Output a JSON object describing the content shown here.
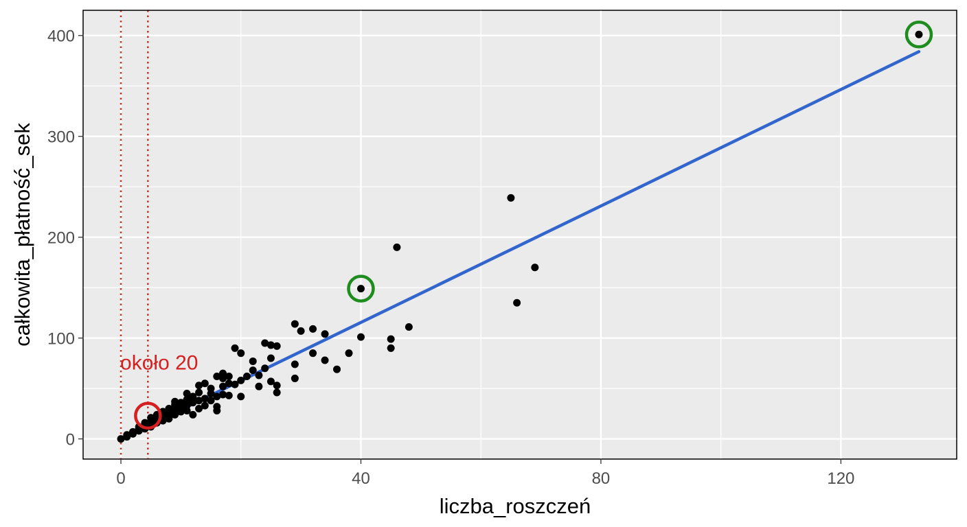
{
  "chart_data": {
    "type": "scatter",
    "xlabel": "liczba_roszczeń",
    "ylabel": "całkowita_płatność_sek",
    "xlim": [
      -6.3,
      139.3
    ],
    "ylim": [
      -20,
      425
    ],
    "x_ticks": [
      0,
      40,
      80,
      120
    ],
    "y_ticks": [
      0,
      100,
      200,
      300,
      400
    ],
    "x_tick_labels": [
      "0",
      "40",
      "80",
      "120"
    ],
    "y_tick_labels": [
      "0",
      "100",
      "200",
      "300",
      "400"
    ],
    "grid": true,
    "legend": "none",
    "colors": {
      "panel": "#ebebeb",
      "grid": "#ffffff",
      "point": "#000000",
      "fit_line": "#3366cc",
      "highlight_green": "#1e8c1e",
      "highlight_red": "#d42020",
      "vline": "#c0392b"
    },
    "points": [
      {
        "x": 0,
        "y": 0
      },
      {
        "x": 1,
        "y": 2
      },
      {
        "x": 1,
        "y": 4
      },
      {
        "x": 2,
        "y": 5
      },
      {
        "x": 2,
        "y": 7
      },
      {
        "x": 3,
        "y": 8
      },
      {
        "x": 3,
        "y": 10
      },
      {
        "x": 3,
        "y": 12
      },
      {
        "x": 4,
        "y": 10
      },
      {
        "x": 4,
        "y": 14
      },
      {
        "x": 4,
        "y": 16
      },
      {
        "x": 5,
        "y": 12
      },
      {
        "x": 5,
        "y": 15
      },
      {
        "x": 5,
        "y": 18
      },
      {
        "x": 5,
        "y": 21
      },
      {
        "x": 6,
        "y": 16
      },
      {
        "x": 6,
        "y": 20
      },
      {
        "x": 6,
        "y": 24
      },
      {
        "x": 7,
        "y": 18
      },
      {
        "x": 7,
        "y": 22
      },
      {
        "x": 7,
        "y": 27
      },
      {
        "x": 8,
        "y": 20
      },
      {
        "x": 8,
        "y": 25
      },
      {
        "x": 8,
        "y": 30
      },
      {
        "x": 9,
        "y": 24
      },
      {
        "x": 9,
        "y": 28
      },
      {
        "x": 9,
        "y": 34
      },
      {
        "x": 9,
        "y": 37
      },
      {
        "x": 10,
        "y": 27
      },
      {
        "x": 10,
        "y": 31
      },
      {
        "x": 10,
        "y": 36
      },
      {
        "x": 11,
        "y": 28
      },
      {
        "x": 11,
        "y": 33
      },
      {
        "x": 11,
        "y": 39
      },
      {
        "x": 11,
        "y": 45
      },
      {
        "x": 12,
        "y": 24
      },
      {
        "x": 12,
        "y": 36
      },
      {
        "x": 12,
        "y": 42
      },
      {
        "x": 13,
        "y": 30
      },
      {
        "x": 13,
        "y": 38
      },
      {
        "x": 13,
        "y": 46
      },
      {
        "x": 13,
        "y": 53
      },
      {
        "x": 14,
        "y": 33
      },
      {
        "x": 14,
        "y": 40
      },
      {
        "x": 14,
        "y": 55
      },
      {
        "x": 15,
        "y": 38
      },
      {
        "x": 15,
        "y": 45
      },
      {
        "x": 15,
        "y": 50
      },
      {
        "x": 16,
        "y": 42
      },
      {
        "x": 16,
        "y": 62
      },
      {
        "x": 16,
        "y": 28
      },
      {
        "x": 16,
        "y": 32
      },
      {
        "x": 17,
        "y": 44
      },
      {
        "x": 17,
        "y": 52
      },
      {
        "x": 17,
        "y": 60
      },
      {
        "x": 17,
        "y": 65
      },
      {
        "x": 18,
        "y": 43
      },
      {
        "x": 18,
        "y": 55
      },
      {
        "x": 18,
        "y": 62
      },
      {
        "x": 19,
        "y": 54
      },
      {
        "x": 19,
        "y": 90
      },
      {
        "x": 20,
        "y": 42
      },
      {
        "x": 20,
        "y": 58
      },
      {
        "x": 20,
        "y": 85
      },
      {
        "x": 21,
        "y": 62
      },
      {
        "x": 22,
        "y": 68
      },
      {
        "x": 22,
        "y": 77
      },
      {
        "x": 23,
        "y": 52
      },
      {
        "x": 23,
        "y": 63
      },
      {
        "x": 24,
        "y": 70
      },
      {
        "x": 24,
        "y": 95
      },
      {
        "x": 25,
        "y": 57
      },
      {
        "x": 25,
        "y": 80
      },
      {
        "x": 25,
        "y": 93
      },
      {
        "x": 26,
        "y": 46
      },
      {
        "x": 26,
        "y": 53
      },
      {
        "x": 26,
        "y": 92
      },
      {
        "x": 29,
        "y": 74
      },
      {
        "x": 29,
        "y": 114
      },
      {
        "x": 29,
        "y": 60
      },
      {
        "x": 30,
        "y": 107
      },
      {
        "x": 32,
        "y": 85
      },
      {
        "x": 32,
        "y": 109
      },
      {
        "x": 34,
        "y": 78
      },
      {
        "x": 34,
        "y": 104
      },
      {
        "x": 36,
        "y": 69
      },
      {
        "x": 38,
        "y": 85
      },
      {
        "x": 40,
        "y": 101
      },
      {
        "x": 40,
        "y": 149
      },
      {
        "x": 45,
        "y": 99
      },
      {
        "x": 45,
        "y": 90
      },
      {
        "x": 46,
        "y": 190
      },
      {
        "x": 48,
        "y": 111
      },
      {
        "x": 65,
        "y": 239
      },
      {
        "x": 66,
        "y": 135
      },
      {
        "x": 69,
        "y": 170
      },
      {
        "x": 133,
        "y": 401
      }
    ],
    "fit_line": {
      "x": [
        0,
        133
      ],
      "y": [
        0,
        384
      ]
    },
    "highlight_circles": [
      {
        "x": 40,
        "y": 149,
        "color": "green"
      },
      {
        "x": 133,
        "y": 401,
        "color": "green"
      },
      {
        "x": 4.5,
        "y": 23,
        "color": "red"
      }
    ],
    "vlines": [
      0,
      4.5
    ],
    "annotations": [
      {
        "text": "około 20",
        "x": 0,
        "y": 75,
        "color": "red"
      }
    ]
  }
}
